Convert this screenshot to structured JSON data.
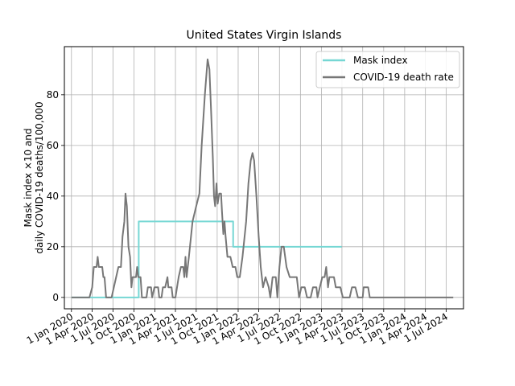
{
  "chart_data": {
    "type": "line",
    "title": "United States Virgin Islands",
    "xlabel": "",
    "ylabel_line1": "Mask index ×10 and",
    "ylabel_line2": "daily COVID-19 deaths/100,000",
    "grid": true,
    "legend_position": "top-right",
    "xlim": [
      "2019-12-01",
      "2024-09-15"
    ],
    "ylim": [
      -4.5,
      99
    ],
    "y_ticks": [
      0,
      20,
      40,
      60,
      80
    ],
    "x_ticks": [
      {
        "date": "2020-01-01",
        "label": "1 Jan 2020"
      },
      {
        "date": "2020-04-01",
        "label": "1 Apr 2020"
      },
      {
        "date": "2020-07-01",
        "label": "1 Jul 2020"
      },
      {
        "date": "2020-10-01",
        "label": "1 Oct 2020"
      },
      {
        "date": "2021-01-01",
        "label": "1 Jan 2021"
      },
      {
        "date": "2021-04-01",
        "label": "1 Apr 2021"
      },
      {
        "date": "2021-07-01",
        "label": "1 Jul 2021"
      },
      {
        "date": "2021-10-01",
        "label": "1 Oct 2021"
      },
      {
        "date": "2022-01-01",
        "label": "1 Jan 2022"
      },
      {
        "date": "2022-04-01",
        "label": "1 Apr 2022"
      },
      {
        "date": "2022-07-01",
        "label": "1 Jul 2022"
      },
      {
        "date": "2022-10-01",
        "label": "1 Oct 2022"
      },
      {
        "date": "2023-01-01",
        "label": "1 Jan 2023"
      },
      {
        "date": "2023-04-01",
        "label": "1 Apr 2023"
      },
      {
        "date": "2023-07-01",
        "label": "1 Jul 2023"
      },
      {
        "date": "2023-10-01",
        "label": "1 Oct 2023"
      },
      {
        "date": "2024-01-01",
        "label": "1 Jan 2024"
      },
      {
        "date": "2024-04-01",
        "label": "1 Apr 2024"
      },
      {
        "date": "2024-07-01",
        "label": "1 Jul 2024"
      }
    ],
    "series": [
      {
        "name": "Mask index",
        "color": "#76d7d4",
        "step": true,
        "points": [
          [
            "2020-01-01",
            0
          ],
          [
            "2020-10-22",
            0
          ],
          [
            "2020-10-22",
            30
          ],
          [
            "2021-12-10",
            30
          ],
          [
            "2021-12-10",
            20
          ],
          [
            "2023-03-31",
            20
          ]
        ]
      },
      {
        "name": "COVID-19 death rate",
        "color": "#777777",
        "points": [
          [
            "2020-01-01",
            0
          ],
          [
            "2020-03-20",
            0
          ],
          [
            "2020-04-01",
            4
          ],
          [
            "2020-04-08",
            12
          ],
          [
            "2020-04-20",
            12
          ],
          [
            "2020-04-25",
            16
          ],
          [
            "2020-04-30",
            12
          ],
          [
            "2020-05-15",
            12
          ],
          [
            "2020-05-20",
            8
          ],
          [
            "2020-05-25",
            8
          ],
          [
            "2020-06-01",
            0
          ],
          [
            "2020-06-25",
            0
          ],
          [
            "2020-07-15",
            8
          ],
          [
            "2020-07-25",
            12
          ],
          [
            "2020-08-05",
            12
          ],
          [
            "2020-08-12",
            24
          ],
          [
            "2020-08-20",
            30
          ],
          [
            "2020-08-25",
            41
          ],
          [
            "2020-08-31",
            36
          ],
          [
            "2020-09-07",
            20
          ],
          [
            "2020-09-14",
            16
          ],
          [
            "2020-09-20",
            4
          ],
          [
            "2020-09-25",
            8
          ],
          [
            "2020-10-10",
            8
          ],
          [
            "2020-10-15",
            12
          ],
          [
            "2020-10-20",
            8
          ],
          [
            "2020-10-30",
            8
          ],
          [
            "2020-11-05",
            0
          ],
          [
            "2020-11-25",
            0
          ],
          [
            "2020-12-01",
            4
          ],
          [
            "2020-12-15",
            4
          ],
          [
            "2020-12-20",
            0
          ],
          [
            "2020-12-30",
            4
          ],
          [
            "2021-01-15",
            4
          ],
          [
            "2021-01-20",
            0
          ],
          [
            "2021-01-30",
            0
          ],
          [
            "2021-02-05",
            4
          ],
          [
            "2021-02-15",
            4
          ],
          [
            "2021-02-25",
            8
          ],
          [
            "2021-03-01",
            4
          ],
          [
            "2021-03-15",
            4
          ],
          [
            "2021-03-20",
            0
          ],
          [
            "2021-04-01",
            0
          ],
          [
            "2021-04-15",
            8
          ],
          [
            "2021-04-25",
            12
          ],
          [
            "2021-05-05",
            12
          ],
          [
            "2021-05-10",
            8
          ],
          [
            "2021-05-15",
            16
          ],
          [
            "2021-05-20",
            8
          ],
          [
            "2021-05-30",
            16
          ],
          [
            "2021-06-15",
            30
          ],
          [
            "2021-07-01",
            36
          ],
          [
            "2021-07-15",
            41
          ],
          [
            "2021-07-25",
            60
          ],
          [
            "2021-08-08",
            80
          ],
          [
            "2021-08-20",
            94
          ],
          [
            "2021-08-28",
            90
          ],
          [
            "2021-09-05",
            72
          ],
          [
            "2021-09-12",
            55
          ],
          [
            "2021-09-17",
            40
          ],
          [
            "2021-09-22",
            36
          ],
          [
            "2021-09-28",
            45
          ],
          [
            "2021-10-03",
            37
          ],
          [
            "2021-10-10",
            41
          ],
          [
            "2021-10-18",
            41
          ],
          [
            "2021-10-22",
            34
          ],
          [
            "2021-10-28",
            25
          ],
          [
            "2021-11-02",
            30
          ],
          [
            "2021-11-07",
            24
          ],
          [
            "2021-11-15",
            16
          ],
          [
            "2021-11-28",
            16
          ],
          [
            "2021-12-08",
            12
          ],
          [
            "2021-12-20",
            12
          ],
          [
            "2021-12-28",
            8
          ],
          [
            "2022-01-08",
            8
          ],
          [
            "2022-01-20",
            16
          ],
          [
            "2022-02-05",
            30
          ],
          [
            "2022-02-15",
            45
          ],
          [
            "2022-02-25",
            54
          ],
          [
            "2022-03-05",
            57
          ],
          [
            "2022-03-12",
            54
          ],
          [
            "2022-03-22",
            40
          ],
          [
            "2022-04-01",
            24
          ],
          [
            "2022-04-10",
            12
          ],
          [
            "2022-04-20",
            4
          ],
          [
            "2022-05-01",
            8
          ],
          [
            "2022-05-15",
            4
          ],
          [
            "2022-05-22",
            0
          ],
          [
            "2022-06-01",
            8
          ],
          [
            "2022-06-15",
            8
          ],
          [
            "2022-06-22",
            0
          ],
          [
            "2022-07-01",
            12
          ],
          [
            "2022-07-10",
            20
          ],
          [
            "2022-07-20",
            20
          ],
          [
            "2022-08-01",
            12
          ],
          [
            "2022-08-15",
            8
          ],
          [
            "2022-08-30",
            8
          ],
          [
            "2022-09-15",
            8
          ],
          [
            "2022-09-25",
            0
          ],
          [
            "2022-10-05",
            4
          ],
          [
            "2022-10-20",
            4
          ],
          [
            "2022-10-30",
            0
          ],
          [
            "2022-11-15",
            0
          ],
          [
            "2022-11-25",
            4
          ],
          [
            "2022-12-10",
            4
          ],
          [
            "2022-12-15",
            0
          ],
          [
            "2022-12-25",
            4
          ],
          [
            "2023-01-05",
            8
          ],
          [
            "2023-01-15",
            8
          ],
          [
            "2023-01-22",
            12
          ],
          [
            "2023-01-30",
            4
          ],
          [
            "2023-02-05",
            8
          ],
          [
            "2023-02-25",
            8
          ],
          [
            "2023-03-05",
            4
          ],
          [
            "2023-03-25",
            4
          ],
          [
            "2023-04-05",
            0
          ],
          [
            "2023-05-05",
            0
          ],
          [
            "2023-05-15",
            4
          ],
          [
            "2023-05-30",
            4
          ],
          [
            "2023-06-10",
            0
          ],
          [
            "2023-07-01",
            0
          ],
          [
            "2023-07-05",
            4
          ],
          [
            "2023-07-25",
            4
          ],
          [
            "2023-08-01",
            0
          ],
          [
            "2024-08-01",
            0
          ]
        ]
      }
    ]
  }
}
